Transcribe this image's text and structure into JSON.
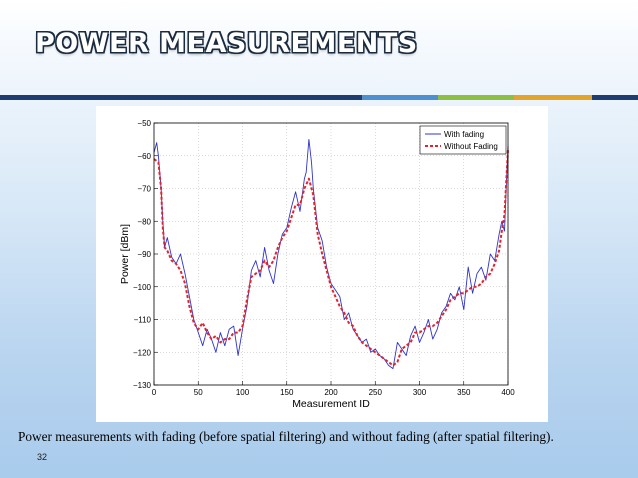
{
  "slide": {
    "title": "POWER MEASUREMENTS",
    "caption": "Power measurements with fading (before spatial filtering) and without fading (after spatial filtering).",
    "slide_number": "32",
    "accent_colors": [
      "#1f3d6e",
      "#4e8fd0",
      "#8dbf43",
      "#e3a42c"
    ]
  },
  "chart_data": {
    "type": "line",
    "title": "",
    "xlabel": "Measurement ID",
    "ylabel": "Power [dBm]",
    "xlim": [
      0,
      400
    ],
    "ylim": [
      -130,
      -50
    ],
    "xticks": [
      0,
      50,
      100,
      150,
      200,
      250,
      300,
      350,
      400
    ],
    "yticks": [
      -50,
      -60,
      -70,
      -80,
      -90,
      -100,
      -110,
      -120,
      -130
    ],
    "grid": true,
    "legend_position": "top-right",
    "series": [
      {
        "name": "With fading",
        "color": "#2f35c8",
        "style": "solid",
        "x": [
          0,
          3,
          5,
          8,
          10,
          12,
          15,
          20,
          25,
          30,
          35,
          40,
          45,
          50,
          55,
          60,
          65,
          70,
          75,
          80,
          85,
          90,
          95,
          100,
          105,
          110,
          115,
          120,
          125,
          130,
          135,
          140,
          145,
          150,
          155,
          160,
          165,
          170,
          172,
          175,
          178,
          180,
          185,
          190,
          195,
          200,
          205,
          210,
          215,
          220,
          225,
          230,
          235,
          240,
          245,
          250,
          255,
          260,
          265,
          270,
          275,
          280,
          285,
          290,
          295,
          300,
          305,
          310,
          315,
          320,
          325,
          330,
          335,
          340,
          345,
          350,
          355,
          360,
          365,
          370,
          375,
          380,
          385,
          390,
          393,
          396,
          398,
          400
        ],
        "y": [
          -59,
          -56,
          -60,
          -70,
          -80,
          -88,
          -85,
          -91,
          -93,
          -90,
          -96,
          -103,
          -110,
          -114,
          -118,
          -113,
          -116,
          -120,
          -114,
          -118,
          -113,
          -112,
          -121,
          -113,
          -106,
          -95,
          -92,
          -97,
          -88,
          -95,
          -99,
          -90,
          -84,
          -82,
          -76,
          -71,
          -77,
          -67,
          -65,
          -55,
          -62,
          -70,
          -82,
          -86,
          -94,
          -99,
          -101,
          -103,
          -110,
          -108,
          -113,
          -115,
          -117,
          -116,
          -120,
          -119,
          -121,
          -122,
          -124,
          -125,
          -117,
          -119,
          -121,
          -115,
          -112,
          -117,
          -114,
          -110,
          -116,
          -113,
          -108,
          -106,
          -102,
          -104,
          -100,
          -107,
          -94,
          -102,
          -96,
          -94,
          -98,
          -90,
          -92,
          -84,
          -80,
          -83,
          -70,
          -57
        ]
      },
      {
        "name": "Without Fading",
        "color": "#e0242e",
        "style": "dashed",
        "x": [
          0,
          5,
          8,
          10,
          12,
          15,
          20,
          25,
          30,
          35,
          40,
          45,
          50,
          55,
          60,
          65,
          70,
          75,
          80,
          85,
          90,
          95,
          100,
          105,
          110,
          115,
          120,
          125,
          130,
          135,
          140,
          145,
          150,
          155,
          160,
          165,
          170,
          175,
          180,
          185,
          190,
          195,
          200,
          205,
          210,
          215,
          220,
          225,
          230,
          235,
          240,
          245,
          250,
          255,
          260,
          265,
          270,
          275,
          280,
          285,
          290,
          295,
          300,
          305,
          310,
          315,
          320,
          325,
          330,
          335,
          340,
          345,
          350,
          355,
          360,
          365,
          370,
          375,
          380,
          385,
          390,
          393,
          396,
          398,
          400
        ],
        "y": [
          -61,
          -62,
          -70,
          -82,
          -88,
          -89,
          -92,
          -93,
          -95,
          -99,
          -106,
          -111,
          -113,
          -111,
          -114,
          -116,
          -115,
          -117,
          -116,
          -116,
          -114,
          -114,
          -112,
          -104,
          -97,
          -96,
          -95,
          -92,
          -94,
          -92,
          -88,
          -85,
          -83,
          -79,
          -75,
          -75,
          -70,
          -67,
          -72,
          -84,
          -90,
          -95,
          -100,
          -103,
          -106,
          -108,
          -111,
          -112,
          -115,
          -117,
          -118,
          -119,
          -120,
          -121,
          -122,
          -123,
          -124,
          -123,
          -119,
          -118,
          -117,
          -114,
          -114,
          -113,
          -112,
          -112,
          -111,
          -109,
          -107,
          -104,
          -103,
          -102,
          -102,
          -101,
          -100,
          -100,
          -99,
          -97,
          -96,
          -93,
          -89,
          -83,
          -78,
          -68,
          -58
        ]
      }
    ]
  }
}
